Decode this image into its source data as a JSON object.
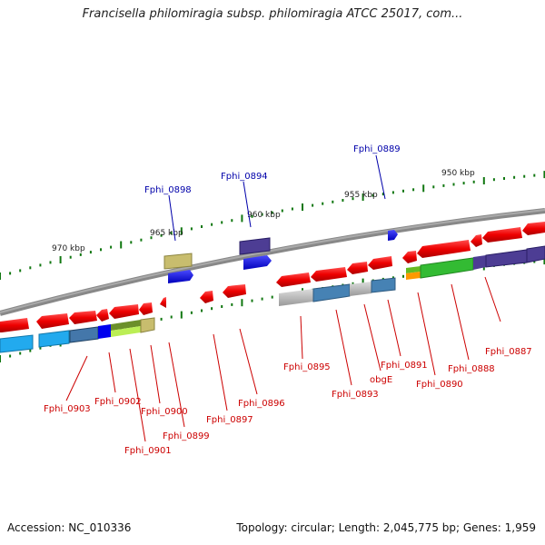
{
  "title": "Francisella philomiragia subsp. philomiragia ATCC 25017, com...",
  "footer": {
    "accession": "Accession: NC_010336",
    "topology": "Topology: circular; Length: 2,045,775 bp; Genes: 1,959"
  },
  "scale_labels": [
    "950 kbp",
    "955 kbp",
    "960 kbp",
    "965 kbp",
    "970 kbp"
  ],
  "top_labels": [
    "Fphi_0889",
    "Fphi_0894",
    "Fphi_0898"
  ],
  "bottom_labels": [
    "Fphi_0887",
    "Fphi_0888",
    "Fphi_0890",
    "Fphi_0891",
    "obgE",
    "Fphi_0893",
    "Fphi_0895",
    "Fphi_0896",
    "Fphi_0897",
    "Fphi_0899",
    "Fphi_0900",
    "Fphi_0901",
    "Fphi_0902",
    "Fphi_0903"
  ],
  "colors": {
    "forward_gene": "#0000ee",
    "reverse_gene": "#ee0000",
    "backbone": "#777777",
    "tick": "#117711",
    "top_label": "#0000aa",
    "bottom_label": "#cc0000"
  }
}
